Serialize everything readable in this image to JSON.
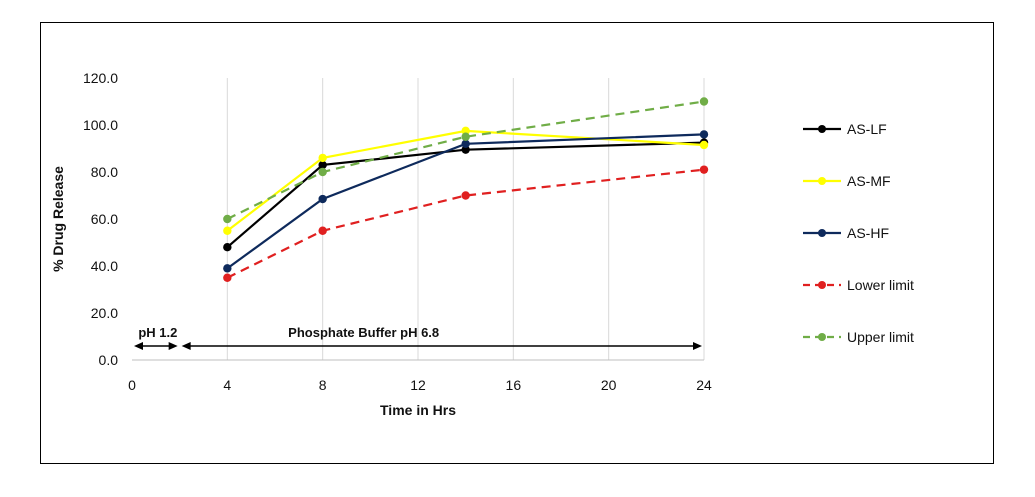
{
  "chart_data": {
    "type": "line",
    "title": "",
    "xlabel": "Time in Hrs",
    "ylabel": "% Drug Release",
    "xlim": [
      0,
      24
    ],
    "ylim": [
      0,
      120
    ],
    "xticks": [
      "0",
      "4",
      "8",
      "12",
      "16",
      "20",
      "24"
    ],
    "yticks": [
      "0.0",
      "20.0",
      "40.0",
      "60.0",
      "80.0",
      "100.0",
      "120.0"
    ],
    "grid": "vertical",
    "legend_position": "right",
    "series": [
      {
        "name": "AS-LF",
        "color": "#000000",
        "dashed": false,
        "x": [
          4,
          8,
          14,
          24
        ],
        "y": [
          48,
          83,
          89.5,
          92.5
        ]
      },
      {
        "name": "AS-MF",
        "color": "#ffff00",
        "dashed": false,
        "x": [
          4,
          8,
          14,
          24
        ],
        "y": [
          55,
          86,
          97.5,
          91.5
        ]
      },
      {
        "name": "AS-HF",
        "color": "#0e2a5c",
        "dashed": false,
        "x": [
          4,
          8,
          14,
          24
        ],
        "y": [
          39,
          68.5,
          92,
          96
        ]
      },
      {
        "name": "Lower limit",
        "color": "#e02020",
        "dashed": true,
        "x": [
          4,
          8,
          14,
          24
        ],
        "y": [
          35,
          55,
          70,
          81
        ]
      },
      {
        "name": "Upper limit",
        "color": "#70ad47",
        "dashed": true,
        "x": [
          4,
          8,
          14,
          24
        ],
        "y": [
          60,
          80,
          95,
          110
        ]
      }
    ],
    "annotations": [
      {
        "text": "pH 1.2",
        "x_start": 0,
        "x_end": 2
      },
      {
        "text": "Phosphate Buffer pH 6.8",
        "x_start": 2,
        "x_end": 24
      }
    ]
  }
}
